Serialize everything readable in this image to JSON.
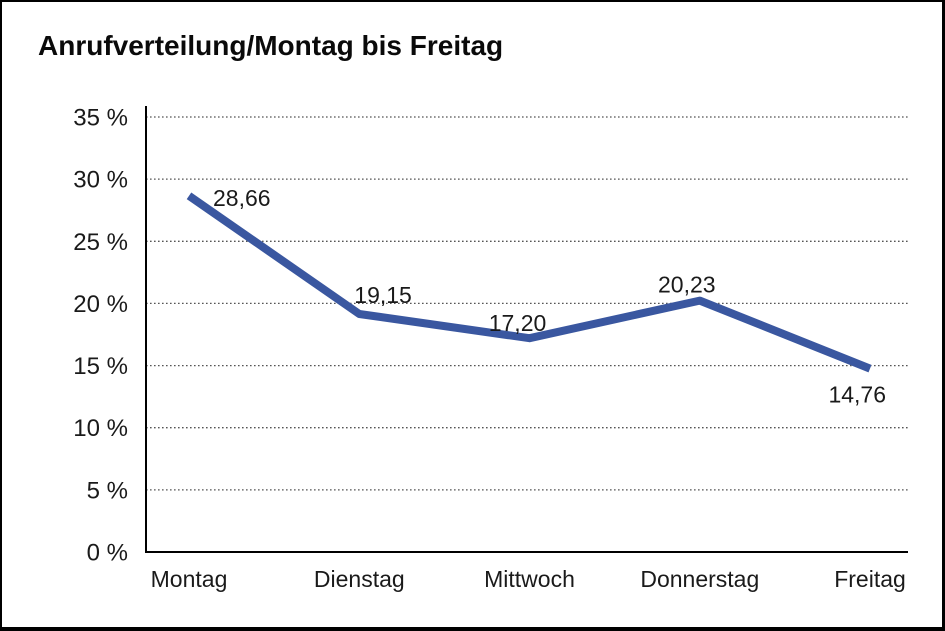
{
  "title": "Anrufverteilung/Montag bis Freitag",
  "colors": {
    "line": "#3A57A0",
    "text": "#1a1a1a",
    "grid": "#555555",
    "axis": "#000000",
    "background": "#ffffff",
    "border": "#000000"
  },
  "chart_data": {
    "type": "line",
    "title": "Anrufverteilung/Montag bis Freitag",
    "categories": [
      "Montag",
      "Dienstag",
      "Mittwoch",
      "Donnerstag",
      "Freitag"
    ],
    "values": [
      28.66,
      19.15,
      17.2,
      20.23,
      14.76
    ],
    "value_labels": [
      "28,66",
      "19,15",
      "17,20",
      "20,23",
      "14,76"
    ],
    "xlabel": "",
    "ylabel": "",
    "ylim": [
      0,
      35
    ],
    "ytick_step": 5,
    "ytick_labels": [
      "0 %",
      "5 %",
      "10 %",
      "15 %",
      "20 %",
      "25 %",
      "30 %",
      "35 %"
    ],
    "grid": "horizontal-dotted",
    "legend": "none",
    "line_color": "#3A57A0"
  }
}
